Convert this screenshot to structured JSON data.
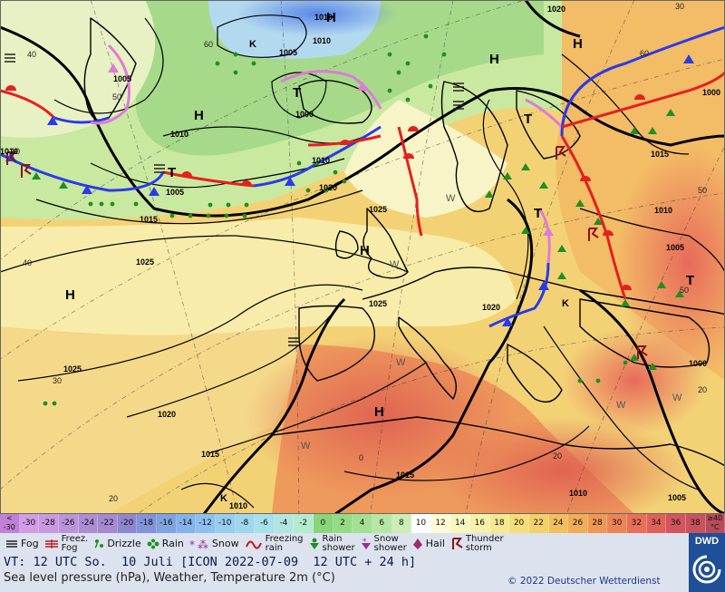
{
  "map": {
    "pressure_labels": [
      {
        "v": "1020"
      },
      {
        "v": "1010"
      },
      {
        "v": "1005"
      },
      {
        "v": "1000"
      },
      {
        "v": "1010"
      },
      {
        "v": "1005"
      },
      {
        "v": "1010"
      },
      {
        "v": "1020"
      },
      {
        "v": "1015"
      },
      {
        "v": "1010"
      },
      {
        "v": "1005"
      },
      {
        "v": "1000"
      },
      {
        "v": "1010"
      },
      {
        "v": "1025"
      },
      {
        "v": "1025"
      },
      {
        "v": "1025"
      },
      {
        "v": "1025"
      },
      {
        "v": "1020"
      },
      {
        "v": "1020"
      },
      {
        "v": "1015"
      },
      {
        "v": "1015"
      },
      {
        "v": "1010"
      },
      {
        "v": "1015"
      },
      {
        "v": "1010"
      },
      {
        "v": "1005"
      },
      {
        "v": "1000"
      },
      {
        "v": "1005"
      },
      {
        "v": "1010"
      }
    ],
    "pressure_centres": [
      {
        "t": "H"
      },
      {
        "t": "H"
      },
      {
        "t": "H"
      },
      {
        "t": "H"
      },
      {
        "t": "H"
      },
      {
        "t": "H"
      },
      {
        "t": "H"
      },
      {
        "t": "T"
      },
      {
        "t": "T"
      },
      {
        "t": "T"
      },
      {
        "t": "T"
      },
      {
        "t": "T"
      },
      {
        "t": "K"
      },
      {
        "t": "K"
      },
      {
        "t": "K"
      }
    ],
    "grid_labels": [
      {
        "t": "60"
      },
      {
        "t": "50"
      },
      {
        "t": "40"
      },
      {
        "t": "30"
      },
      {
        "t": "20"
      },
      {
        "t": "60"
      },
      {
        "t": "50"
      },
      {
        "t": "40"
      },
      {
        "t": "30"
      },
      {
        "t": "20"
      },
      {
        "t": "0"
      },
      {
        "t": "20"
      },
      {
        "t": "10"
      },
      {
        "t": "50"
      }
    ],
    "letters_w": [
      {
        "t": "W"
      },
      {
        "t": "W"
      },
      {
        "t": "W"
      },
      {
        "t": "W"
      },
      {
        "t": "W"
      },
      {
        "t": "W"
      }
    ]
  },
  "scale": {
    "cells": [
      {
        "label": "<\n-30",
        "color": "#c07fd8"
      },
      {
        "label": "-30",
        "color": "#d49be6"
      },
      {
        "label": "-28",
        "color": "#c898e0"
      },
      {
        "label": "-26",
        "color": "#bb93da"
      },
      {
        "label": "-24",
        "color": "#ad8cd4"
      },
      {
        "label": "-22",
        "color": "#a488d0"
      },
      {
        "label": "-20",
        "color": "#8f86d0"
      },
      {
        "label": "-18",
        "color": "#8294d8"
      },
      {
        "label": "-16",
        "color": "#7fa2e0"
      },
      {
        "label": "-14",
        "color": "#86b2ea"
      },
      {
        "label": "-12",
        "color": "#8ec0ee"
      },
      {
        "label": "-10",
        "color": "#96cdf0"
      },
      {
        "label": "-8",
        "color": "#9fd6ee"
      },
      {
        "label": "-6",
        "color": "#a8e0ea"
      },
      {
        "label": "-4",
        "color": "#afe6df"
      },
      {
        "label": "-2",
        "color": "#b3ead0"
      },
      {
        "label": "0",
        "color": "#88d67a"
      },
      {
        "label": "2",
        "color": "#94db86"
      },
      {
        "label": "4",
        "color": "#a4e094"
      },
      {
        "label": "6",
        "color": "#b6e6a4"
      },
      {
        "label": "8",
        "color": "#cbedb6"
      },
      {
        "label": "10",
        "color": "#ffffff"
      },
      {
        "label": "12",
        "color": "#fbfbd8"
      },
      {
        "label": "14",
        "color": "#f8f6c0"
      },
      {
        "label": "16",
        "color": "#f6f0a8"
      },
      {
        "label": "18",
        "color": "#f5e890"
      },
      {
        "label": "20",
        "color": "#f5de7a"
      },
      {
        "label": "22",
        "color": "#f3d068"
      },
      {
        "label": "24",
        "color": "#f2bf5c"
      },
      {
        "label": "26",
        "color": "#f0ac56"
      },
      {
        "label": "28",
        "color": "#ee9854"
      },
      {
        "label": "30",
        "color": "#ec8456"
      },
      {
        "label": "32",
        "color": "#e87058"
      },
      {
        "label": "34",
        "color": "#e0605a"
      },
      {
        "label": "36",
        "color": "#d4545e"
      },
      {
        "label": "38",
        "color": "#c8525e"
      },
      {
        "label": "≥40\n°C",
        "color": "#b84a5a"
      }
    ]
  },
  "legend": {
    "fog": "Fog",
    "freezing_fog": "Freez.\nFog",
    "drizzle": "Drizzle",
    "rain": "Rain",
    "snow": "Snow",
    "freezing_rain": "Freezing\nrain",
    "rain_shower": "Rain\nshower",
    "snow_shower": "Snow\nshower",
    "hail": "Hail",
    "thunderstorm": "Thunder\nstorm"
  },
  "footer": {
    "valid_time": "VT: 12 UTC So.  10 Juli [ICON 2022-07-09  12 UTC + 24 h]",
    "subtitle": "Sea level pressure (hPa), Weather, Temperature 2m (°C)",
    "copyright": "© 2022 Deutscher Wetterdienst",
    "logo_text": "DWD"
  }
}
